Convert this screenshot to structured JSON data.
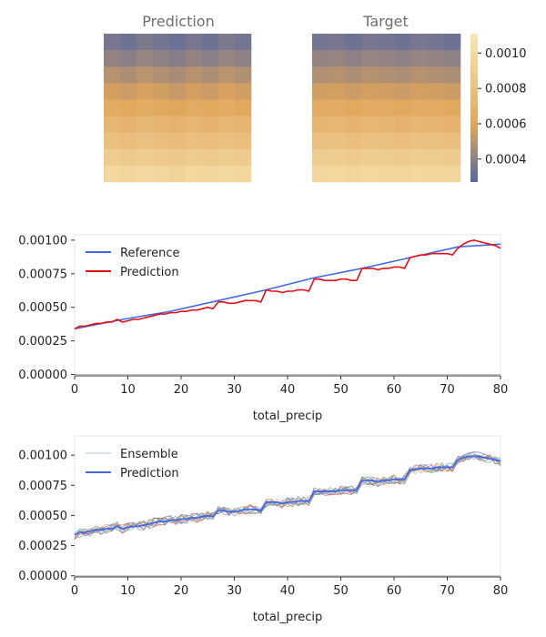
{
  "heatmaps": {
    "prediction_title": "Prediction",
    "target_title": "Target",
    "colorbar": {
      "min": 0.00027,
      "max": 0.00111,
      "ticks": [
        0.0004,
        0.0006,
        0.0008,
        0.001
      ],
      "tick_labels": [
        "0.0004",
        "0.0006",
        "0.0008",
        "0.0010"
      ],
      "colors": [
        "#5568a0",
        "#e0a55b",
        "#f9e8b6"
      ]
    }
  },
  "chart_data": [
    {
      "type": "heatmap",
      "title": "Prediction",
      "rows": 9,
      "cols": 9,
      "row_values": [
        0.00034,
        0.0004,
        0.00048,
        0.00055,
        0.00062,
        0.00071,
        0.00079,
        0.00088,
        0.00097
      ],
      "col_jitter": [
        1e-05,
        -1e-05,
        2e-05,
        0.0,
        -2e-05,
        1e-05,
        -1e-05,
        2e-05,
        0.0
      ]
    },
    {
      "type": "heatmap",
      "title": "Target",
      "rows": 9,
      "cols": 9,
      "row_values": [
        0.00034,
        0.00041,
        0.00048,
        0.00055,
        0.00063,
        0.00071,
        0.0008,
        0.00089,
        0.00097
      ],
      "col_jitter": [
        0.0,
        1e-05,
        -1e-05,
        1e-05,
        0.0,
        -1e-05,
        1e-05,
        0.0,
        -1e-05
      ]
    },
    {
      "type": "line",
      "xlabel": "total_precip",
      "ylabel": "",
      "xlim": [
        0,
        80
      ],
      "ylim": [
        -1e-05,
        0.00104
      ],
      "xticks": [
        0,
        10,
        20,
        30,
        40,
        50,
        60,
        70,
        80
      ],
      "yticks": [
        0.0,
        0.00025,
        0.0005,
        0.00075,
        0.001
      ],
      "ytick_labels": [
        "0.00000",
        "0.00025",
        "0.00050",
        "0.00075",
        "0.00100"
      ],
      "legend": "top-left",
      "grid": false,
      "series": [
        {
          "name": "Reference",
          "color": "#4169e1",
          "x": [
            0,
            9,
            9,
            18,
            18,
            27,
            27,
            36,
            36,
            45,
            45,
            54,
            54,
            63,
            63,
            72,
            72,
            80
          ],
          "y": [
            0.00034,
            0.00041,
            0.00041,
            0.00047,
            0.00047,
            0.00055,
            0.00055,
            0.00063,
            0.00063,
            0.00072,
            0.00072,
            0.00079,
            0.00079,
            0.00087,
            0.00087,
            0.00095,
            0.00095,
            0.00097
          ]
        },
        {
          "name": "Prediction",
          "color": "#e0101a",
          "x": [
            0,
            1,
            2,
            3,
            4,
            5,
            6,
            7,
            8,
            9,
            10,
            11,
            12,
            13,
            14,
            15,
            16,
            17,
            18,
            19,
            20,
            21,
            22,
            23,
            24,
            25,
            26,
            27,
            28,
            29,
            30,
            31,
            32,
            33,
            34,
            35,
            36,
            37,
            38,
            39,
            40,
            41,
            42,
            43,
            44,
            45,
            46,
            47,
            48,
            49,
            50,
            51,
            52,
            53,
            54,
            55,
            56,
            57,
            58,
            59,
            60,
            61,
            62,
            63,
            64,
            65,
            66,
            67,
            68,
            69,
            70,
            71,
            72,
            73,
            74,
            75,
            76,
            77,
            78,
            79,
            80
          ],
          "y": [
            0.00034,
            0.00036,
            0.00036,
            0.00037,
            0.00038,
            0.00038,
            0.00039,
            0.00039,
            0.00041,
            0.00039,
            0.0004,
            0.00041,
            0.00041,
            0.00042,
            0.00043,
            0.00044,
            0.00045,
            0.00045,
            0.00046,
            0.00046,
            0.00047,
            0.00047,
            0.00048,
            0.00048,
            0.00049,
            0.0005,
            0.00049,
            0.00054,
            0.00054,
            0.00053,
            0.00053,
            0.00054,
            0.00055,
            0.00055,
            0.00055,
            0.00054,
            0.00063,
            0.00062,
            0.00062,
            0.00061,
            0.00062,
            0.00062,
            0.00063,
            0.00063,
            0.00062,
            0.00071,
            0.00071,
            0.0007,
            0.0007,
            0.0007,
            0.00071,
            0.00071,
            0.0007,
            0.0007,
            0.00079,
            0.00079,
            0.00079,
            0.00078,
            0.00079,
            0.00079,
            0.0008,
            0.0008,
            0.00079,
            0.00087,
            0.00088,
            0.00089,
            0.00089,
            0.0009,
            0.0009,
            0.0009,
            0.0009,
            0.00089,
            0.00094,
            0.00097,
            0.00099,
            0.001,
            0.00099,
            0.00098,
            0.00097,
            0.00096,
            0.00094
          ]
        }
      ]
    },
    {
      "type": "line",
      "xlabel": "total_precip",
      "ylabel": "",
      "xlim": [
        0,
        80
      ],
      "ylim": [
        -1e-05,
        0.00116
      ],
      "xticks": [
        0,
        10,
        20,
        30,
        40,
        50,
        60,
        70,
        80
      ],
      "yticks": [
        0.0,
        0.00025,
        0.0005,
        0.00075,
        0.001
      ],
      "ytick_labels": [
        "0.00000",
        "0.00025",
        "0.00050",
        "0.00075",
        "0.00100"
      ],
      "legend": "top-left",
      "grid": false,
      "ensemble_members": 10,
      "ensemble_colors": [
        "#4c72b0",
        "#dd8452",
        "#55a868",
        "#c44e52",
        "#8172b3",
        "#937860",
        "#da8bc3",
        "#8c8c8c",
        "#ccb974",
        "#64b5cd"
      ],
      "series": [
        {
          "name": "Ensemble",
          "color": "#8fb8d8",
          "noise": 4e-05
        },
        {
          "name": "Prediction",
          "color": "#4169e1",
          "x": [
            0,
            1,
            2,
            3,
            4,
            5,
            6,
            7,
            8,
            9,
            10,
            11,
            12,
            13,
            14,
            15,
            16,
            17,
            18,
            19,
            20,
            21,
            22,
            23,
            24,
            25,
            26,
            27,
            28,
            29,
            30,
            31,
            32,
            33,
            34,
            35,
            36,
            37,
            38,
            39,
            40,
            41,
            42,
            43,
            44,
            45,
            46,
            47,
            48,
            49,
            50,
            51,
            52,
            53,
            54,
            55,
            56,
            57,
            58,
            59,
            60,
            61,
            62,
            63,
            64,
            65,
            66,
            67,
            68,
            69,
            70,
            71,
            72,
            73,
            74,
            75,
            76,
            77,
            78,
            79,
            80
          ],
          "y": [
            0.00034,
            0.00036,
            0.00036,
            0.00037,
            0.00038,
            0.00038,
            0.00039,
            0.00039,
            0.00041,
            0.00039,
            0.0004,
            0.00041,
            0.00041,
            0.00042,
            0.00043,
            0.00044,
            0.00045,
            0.00045,
            0.00046,
            0.00046,
            0.00047,
            0.00047,
            0.00048,
            0.00048,
            0.00049,
            0.0005,
            0.00049,
            0.00054,
            0.00054,
            0.00053,
            0.00053,
            0.00054,
            0.00055,
            0.00055,
            0.00055,
            0.00054,
            0.00061,
            0.00061,
            0.00061,
            0.0006,
            0.00061,
            0.00061,
            0.00062,
            0.00062,
            0.00062,
            0.0007,
            0.0007,
            0.0007,
            0.0007,
            0.0007,
            0.00071,
            0.00071,
            0.00071,
            0.00071,
            0.00079,
            0.00079,
            0.00079,
            0.00078,
            0.00079,
            0.00079,
            0.0008,
            0.0008,
            0.0008,
            0.00088,
            0.00088,
            0.00089,
            0.00089,
            0.00089,
            0.0009,
            0.0009,
            0.0009,
            0.0009,
            0.00096,
            0.00098,
            0.00099,
            0.00099,
            0.00099,
            0.00098,
            0.00097,
            0.00096,
            0.00095
          ]
        }
      ]
    }
  ]
}
